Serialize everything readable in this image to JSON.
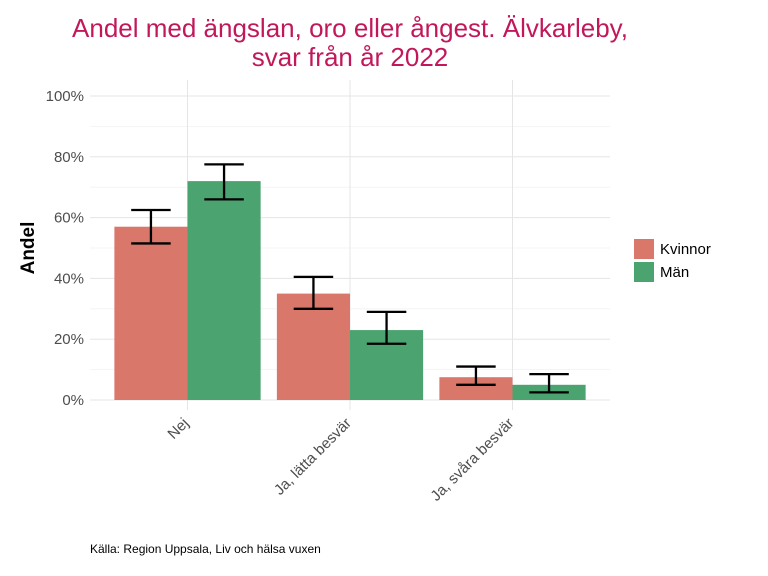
{
  "chart_data": {
    "type": "bar",
    "title_lines": [
      "Andel med ängslan, oro eller ångest. Älvkarleby,",
      "svar från år 2022"
    ],
    "xlabel": "",
    "ylabel": "Andel",
    "ylim": [
      0,
      100
    ],
    "yticks": [
      "0%",
      "20%",
      "40%",
      "60%",
      "80%",
      "100%"
    ],
    "categories": [
      "Nej",
      "Ja, lätta besvär",
      "Ja, svåra besvär"
    ],
    "series": [
      {
        "name": "Kvinnor",
        "color": "#d9776a",
        "values": [
          57,
          35,
          7.5
        ],
        "lower": [
          51.5,
          30,
          5
        ],
        "upper": [
          62.5,
          40.5,
          11
        ]
      },
      {
        "name": "Män",
        "color": "#4ba36f",
        "values": [
          72,
          23,
          5
        ],
        "lower": [
          66,
          18.5,
          2.5
        ],
        "upper": [
          77.5,
          29,
          8.5
        ]
      }
    ],
    "legend_position": "right",
    "grid": true,
    "caption": "Källa: Region Uppsala, Liv och hälsa vuxen"
  }
}
